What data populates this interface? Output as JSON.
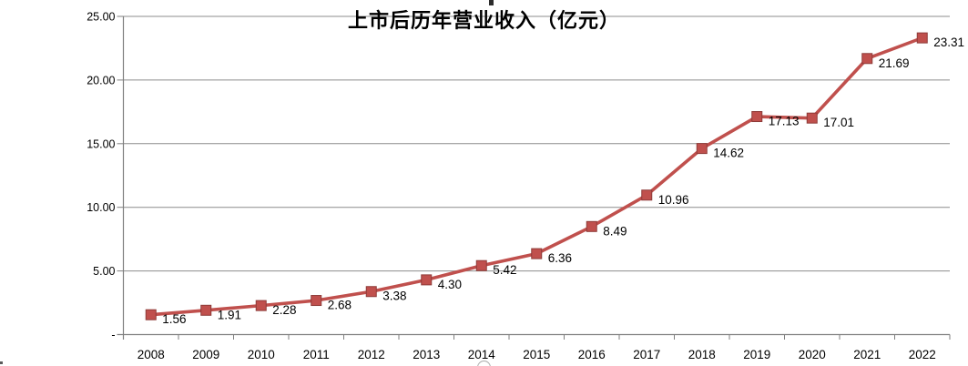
{
  "chart_data": {
    "type": "line",
    "title": "上市后历年营业收入（亿元）",
    "categories": [
      "2008",
      "2009",
      "2010",
      "2011",
      "2012",
      "2013",
      "2014",
      "2015",
      "2016",
      "2017",
      "2018",
      "2019",
      "2020",
      "2021",
      "2022"
    ],
    "values": [
      1.56,
      1.91,
      2.28,
      2.68,
      3.38,
      4.3,
      5.42,
      6.36,
      8.49,
      10.96,
      14.62,
      17.13,
      17.01,
      21.69,
      23.31
    ],
    "data_labels": [
      "1.56",
      "1.91",
      "2.28",
      "2.68",
      "3.38",
      "4.30",
      "5.42",
      "6.36",
      "8.49",
      "10.96",
      "14.62",
      "17.13",
      "17.01",
      "21.69",
      "23.31"
    ],
    "y_axis": {
      "range": [
        0,
        25
      ],
      "ticks": [
        {
          "value": 25,
          "label": "25.00"
        },
        {
          "value": 20,
          "label": "20.00"
        },
        {
          "value": 15,
          "label": "15.00"
        },
        {
          "value": 10,
          "label": "10.00"
        },
        {
          "value": 5,
          "label": "5.00"
        },
        {
          "value": 0,
          "label": "-"
        }
      ]
    },
    "grid": true,
    "legend": "none",
    "marker": "square",
    "colors": {
      "line": "#C0504D",
      "marker_fill": "#C0504D",
      "marker_stroke": "#8E3B38",
      "data_label": "#000000",
      "axis": "#7F7F7F",
      "gridline": "#8C8C8C",
      "tick_text": "#000000",
      "title": "#000000"
    }
  }
}
